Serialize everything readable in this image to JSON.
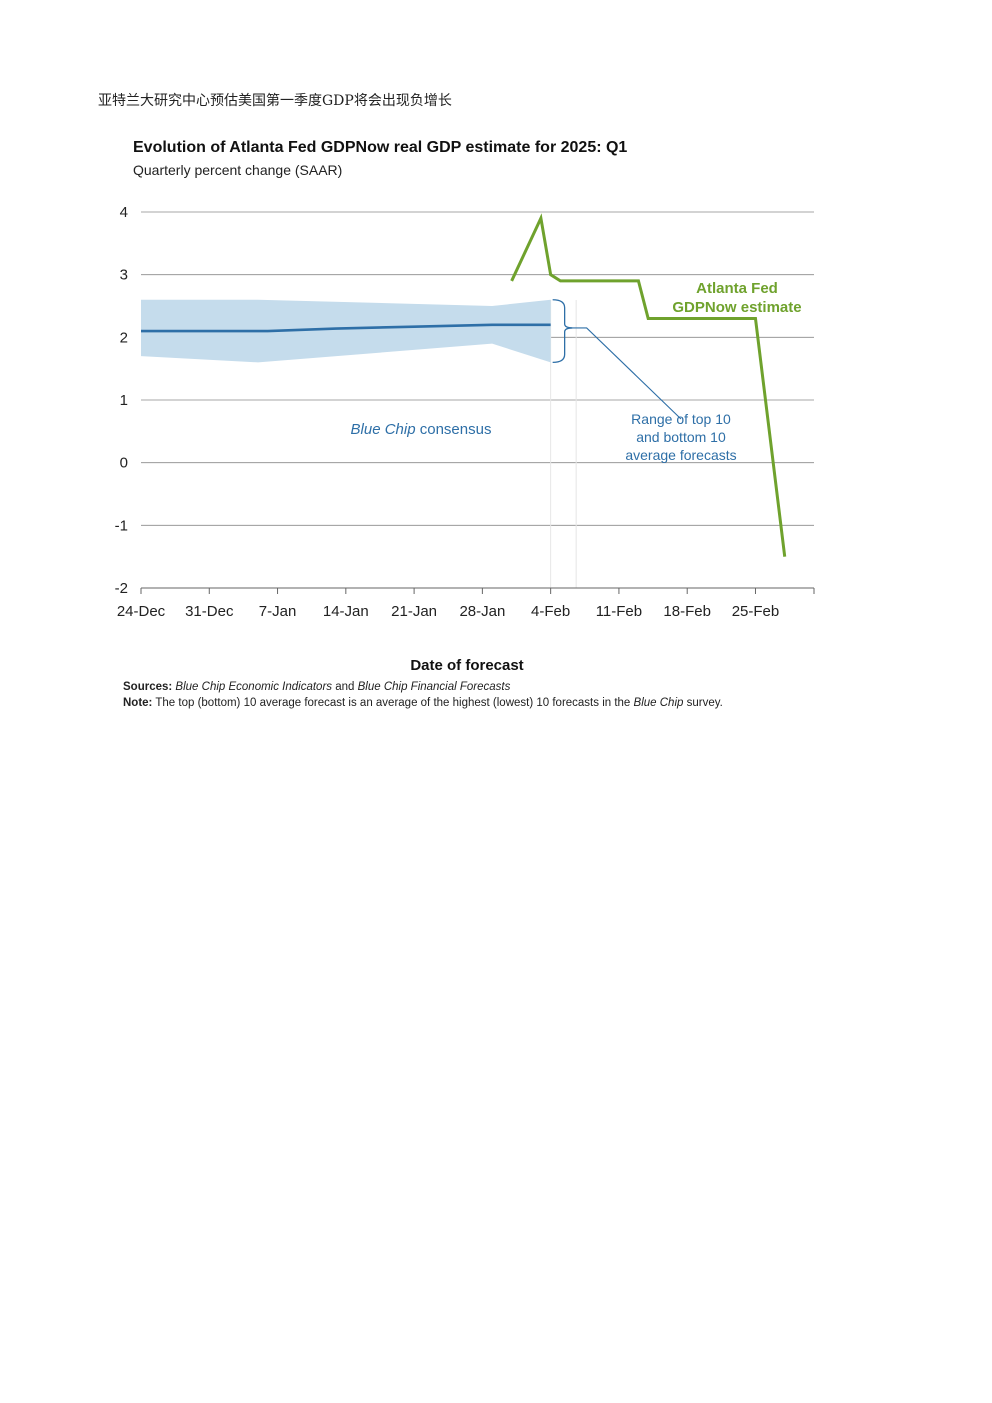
{
  "heading": "亚特兰大研究中心预估美国第一季度GDP将会出现负增长",
  "chart_data": {
    "type": "line",
    "title": "Evolution of Atlanta Fed GDPNow real GDP estimate for 2025: Q1",
    "subtitle": "Quarterly percent change (SAAR)",
    "xlabel": "Date of forecast",
    "ylabel": "",
    "x_tick_labels": [
      "24-Dec",
      "31-Dec",
      "7-Jan",
      "14-Jan",
      "21-Jan",
      "28-Jan",
      "4-Feb",
      "11-Feb",
      "18-Feb",
      "25-Feb"
    ],
    "x_range": [
      "2024-12-24",
      "2025-03-03"
    ],
    "y_ticks": [
      4,
      3,
      2,
      1,
      0,
      -1,
      -2
    ],
    "ylim": [
      -2,
      4
    ],
    "grid": true,
    "series": [
      {
        "name": "Blue Chip consensus",
        "kind": "line",
        "color": "#2e6fa7",
        "points": [
          {
            "x": "2024-12-24",
            "y": 2.1
          },
          {
            "x": "2025-01-02",
            "y": 2.1
          },
          {
            "x": "2025-01-06",
            "y": 2.1
          },
          {
            "x": "2025-01-13",
            "y": 2.14
          },
          {
            "x": "2025-01-21",
            "y": 2.17
          },
          {
            "x": "2025-01-29",
            "y": 2.2
          },
          {
            "x": "2025-02-04",
            "y": 2.2
          }
        ]
      },
      {
        "name": "Range of top 10 and bottom 10 average forecasts",
        "kind": "band",
        "color": "#c5dcec",
        "points": [
          {
            "x": "2024-12-24",
            "low": 1.7,
            "high": 2.6
          },
          {
            "x": "2025-01-05",
            "low": 1.6,
            "high": 2.6
          },
          {
            "x": "2025-01-29",
            "low": 1.9,
            "high": 2.5
          },
          {
            "x": "2025-02-04",
            "low": 1.6,
            "high": 2.6
          }
        ]
      },
      {
        "name": "Atlanta Fed GDPNow estimate",
        "kind": "line",
        "color": "#6fa22d",
        "points": [
          {
            "x": "2025-01-31",
            "y": 2.9
          },
          {
            "x": "2025-02-03",
            "y": 3.9
          },
          {
            "x": "2025-02-04",
            "y": 3.0
          },
          {
            "x": "2025-02-05",
            "y": 2.9
          },
          {
            "x": "2025-02-13",
            "y": 2.9
          },
          {
            "x": "2025-02-14",
            "y": 2.3
          },
          {
            "x": "2025-02-25",
            "y": 2.3
          },
          {
            "x": "2025-02-28",
            "y": -1.5
          }
        ]
      }
    ],
    "annotations": {
      "blue_chip_label_italic": "Blue Chip",
      "blue_chip_label_rest": " consensus",
      "range_label": [
        "Range of top 10",
        "and bottom 10",
        "average forecasts"
      ],
      "gdpnow_label": [
        "Atlanta Fed",
        "GDPNow estimate"
      ]
    }
  },
  "footer": {
    "sources_label": "Sources:",
    "sources_italic_1": "Blue Chip Economic Indicators",
    "sources_and": " and ",
    "sources_italic_2": "Blue Chip Financial Forecasts",
    "note_label": "Note:",
    "note_text": " The top (bottom) 10 average forecast is an average of the highest (lowest) 10 forecasts in the ",
    "note_italic": "Blue Chip",
    "note_end": " survey."
  }
}
